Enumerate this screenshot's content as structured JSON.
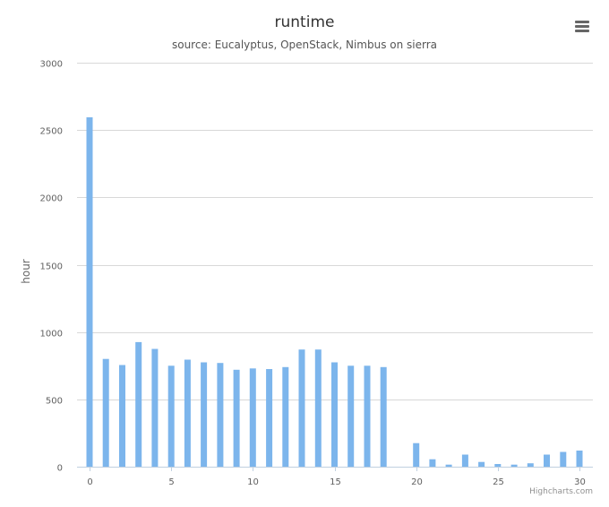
{
  "chart_data": {
    "type": "bar",
    "title": "runtime",
    "subtitle": "source: Eucalyptus, OpenStack, Nimbus on sierra",
    "ylabel": "hour",
    "xlabel": "",
    "ylim": [
      0,
      3000
    ],
    "yticks": [
      0,
      500,
      1000,
      1500,
      2000,
      2500,
      3000
    ],
    "xlim": [
      0,
      30
    ],
    "xticks": [
      0,
      5,
      10,
      15,
      20,
      25,
      30
    ],
    "grid": true,
    "legend": "none",
    "bar_color": "#7cb5ec",
    "series": [
      {
        "x": [
          0,
          1,
          2,
          3,
          4,
          5,
          6,
          7,
          8,
          9,
          10,
          11,
          12,
          13,
          14,
          15,
          16,
          17,
          18,
          20,
          21,
          22,
          23,
          24,
          25,
          26,
          27,
          28,
          29,
          30
        ],
        "values": [
          2595,
          800,
          755,
          925,
          875,
          750,
          795,
          775,
          770,
          720,
          730,
          725,
          740,
          870,
          870,
          775,
          750,
          750,
          740,
          175,
          55,
          15,
          90,
          35,
          20,
          15,
          25,
          90,
          110,
          120
        ]
      }
    ]
  },
  "credits": "Highcharts.com",
  "menu_icon": "hamburger-menu-icon"
}
